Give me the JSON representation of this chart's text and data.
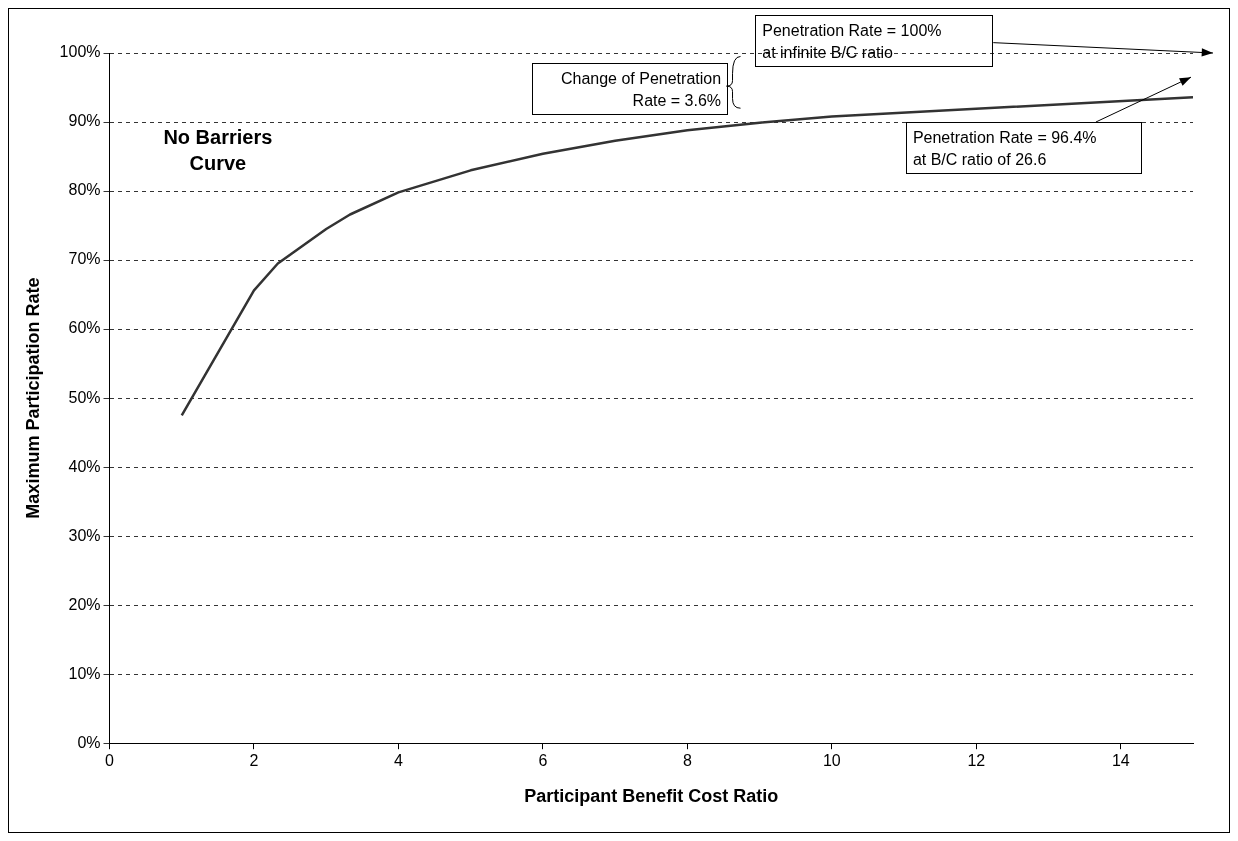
{
  "chart_data": {
    "type": "line",
    "xlabel": "Participant Benefit Cost Ratio",
    "ylabel": "Maximum Participation Rate",
    "x": [
      1,
      2,
      2.33,
      3,
      3.33,
      4,
      5,
      6,
      7,
      8,
      9,
      10,
      15
    ],
    "series": [
      {
        "color": "#333333",
        "values": [
          47.5,
          65.6,
          69.5,
          74.5,
          76.6,
          79.8,
          83,
          85.4,
          87.3,
          88.8,
          89.9,
          90.8,
          93.6
        ]
      }
    ],
    "xlim": [
      0,
      15
    ],
    "xticks": [
      0,
      2,
      4,
      6,
      8,
      10,
      12,
      14
    ],
    "ylim": [
      0,
      100
    ],
    "yticks": [
      {
        "value": 0,
        "label": "0%"
      },
      {
        "value": 10,
        "label": "10%"
      },
      {
        "value": 20,
        "label": "20%"
      },
      {
        "value": 30,
        "label": "30%"
      },
      {
        "value": 40,
        "label": "40%"
      },
      {
        "value": 50,
        "label": "50%"
      },
      {
        "value": 60,
        "label": "60%"
      },
      {
        "value": 70,
        "label": "70%"
      },
      {
        "value": 80,
        "label": "80%"
      },
      {
        "value": 90,
        "label": "90%"
      },
      {
        "value": 100,
        "label": "100%"
      }
    ],
    "grid": "y",
    "legend": false,
    "marker": "none",
    "line_style": "solid",
    "annotations": [
      "No Barriers\nCurve",
      "Change of Penetration\nRate = 3.6%",
      "Penetration Rate = 100%\nat infinite B/C ratio",
      "Penetration Rate = 96.4%\nat B/C ratio of 26.6"
    ]
  }
}
